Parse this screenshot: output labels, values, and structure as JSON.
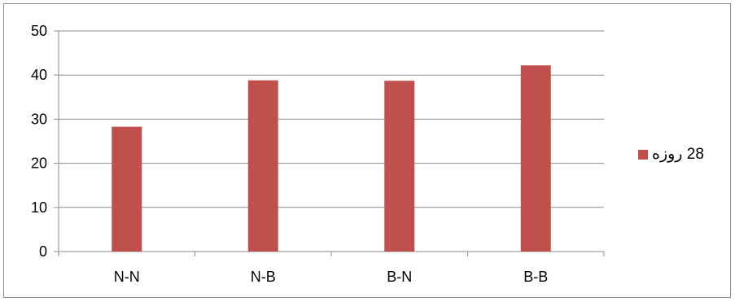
{
  "chart_data": {
    "type": "bar",
    "title": "",
    "xlabel": "",
    "ylabel": "",
    "categories": [
      "N-N",
      "N-B",
      "B-N",
      "B-B"
    ],
    "series": [
      {
        "name": "28 روزه",
        "values": [
          28.3,
          38.8,
          38.7,
          42.2
        ],
        "color": "#c0504d"
      }
    ],
    "ylim": [
      0,
      50
    ],
    "yticks": [
      0,
      10,
      20,
      30,
      40,
      50
    ],
    "grid": "horizontal",
    "legend_position": "right"
  }
}
